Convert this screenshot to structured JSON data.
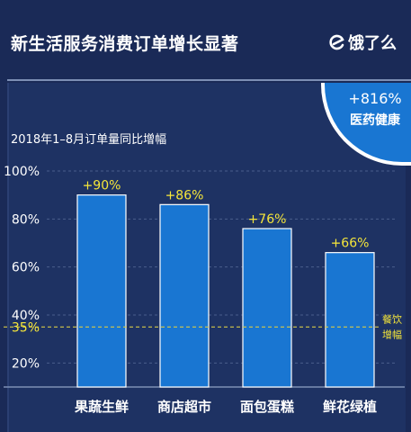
{
  "header": {
    "title": "新生活服务消费订单增长显著",
    "brand": "饿了么"
  },
  "badge": {
    "value": "+816%",
    "label": "医药健康"
  },
  "colors": {
    "background": "#1a2a57",
    "bar": "#1976d2",
    "bar_edge": "#ffffff",
    "value_label": "#f5e63a",
    "reference_line": "#d4c84a"
  },
  "chart_data": {
    "type": "bar",
    "subtitle": "2018年1–8月订单量同比增幅",
    "categories": [
      "果蔬生鲜",
      "商店超市",
      "面包蛋糕",
      "鲜花绿植"
    ],
    "values": [
      90,
      86,
      76,
      66
    ],
    "value_labels": [
      "+90%",
      "+86%",
      "+76%",
      "+66%"
    ],
    "y_ticks": [
      20,
      40,
      60,
      80,
      100
    ],
    "y_tick_labels": [
      "20%",
      "40%",
      "60%",
      "80%",
      "100%"
    ],
    "reference": {
      "value": 35,
      "label": "35%",
      "annotation": [
        "餐饮",
        "增幅"
      ]
    },
    "grid": true
  }
}
